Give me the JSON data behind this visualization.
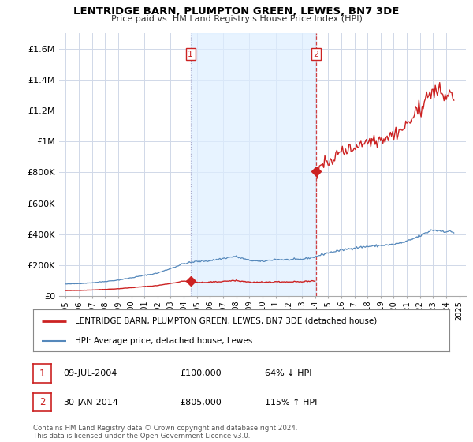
{
  "title": "LENTRIDGE BARN, PLUMPTON GREEN, LEWES, BN7 3DE",
  "subtitle": "Price paid vs. HM Land Registry's House Price Index (HPI)",
  "title_color": "#000000",
  "background_color": "#ffffff",
  "plot_bg_color": "#ffffff",
  "grid_color": "#d0d8e8",
  "hpi_line_color": "#5588bb",
  "price_line_color": "#cc2222",
  "marker_color": "#cc2222",
  "ylim": [
    0,
    1700000
  ],
  "yticks": [
    0,
    200000,
    400000,
    600000,
    800000,
    1000000,
    1200000,
    1400000,
    1600000
  ],
  "ytick_labels": [
    "£0",
    "£200K",
    "£400K",
    "£600K",
    "£800K",
    "£1M",
    "£1.2M",
    "£1.4M",
    "£1.6M"
  ],
  "xlim_start": 1994.5,
  "xlim_end": 2025.5,
  "shade_color": "#ddeeff",
  "transactions": [
    {
      "year": 2004.52,
      "price": 100000,
      "label": "1",
      "date": "09-JUL-2004",
      "price_str": "£100,000",
      "pct": "64% ↓ HPI"
    },
    {
      "year": 2014.08,
      "price": 805000,
      "label": "2",
      "date": "30-JAN-2014",
      "price_str": "£805,000",
      "pct": "115% ↑ HPI"
    }
  ],
  "legend_label_red": "LENTRIDGE BARN, PLUMPTON GREEN, LEWES, BN7 3DE (detached house)",
  "legend_label_blue": "HPI: Average price, detached house, Lewes",
  "footer_text": "Contains HM Land Registry data © Crown copyright and database right 2024.\nThis data is licensed under the Open Government Licence v3.0.",
  "dashed_line_color": "#cc2222",
  "dotted_line_color": "#aaaacc",
  "annotation_box_color": "#cc2222"
}
